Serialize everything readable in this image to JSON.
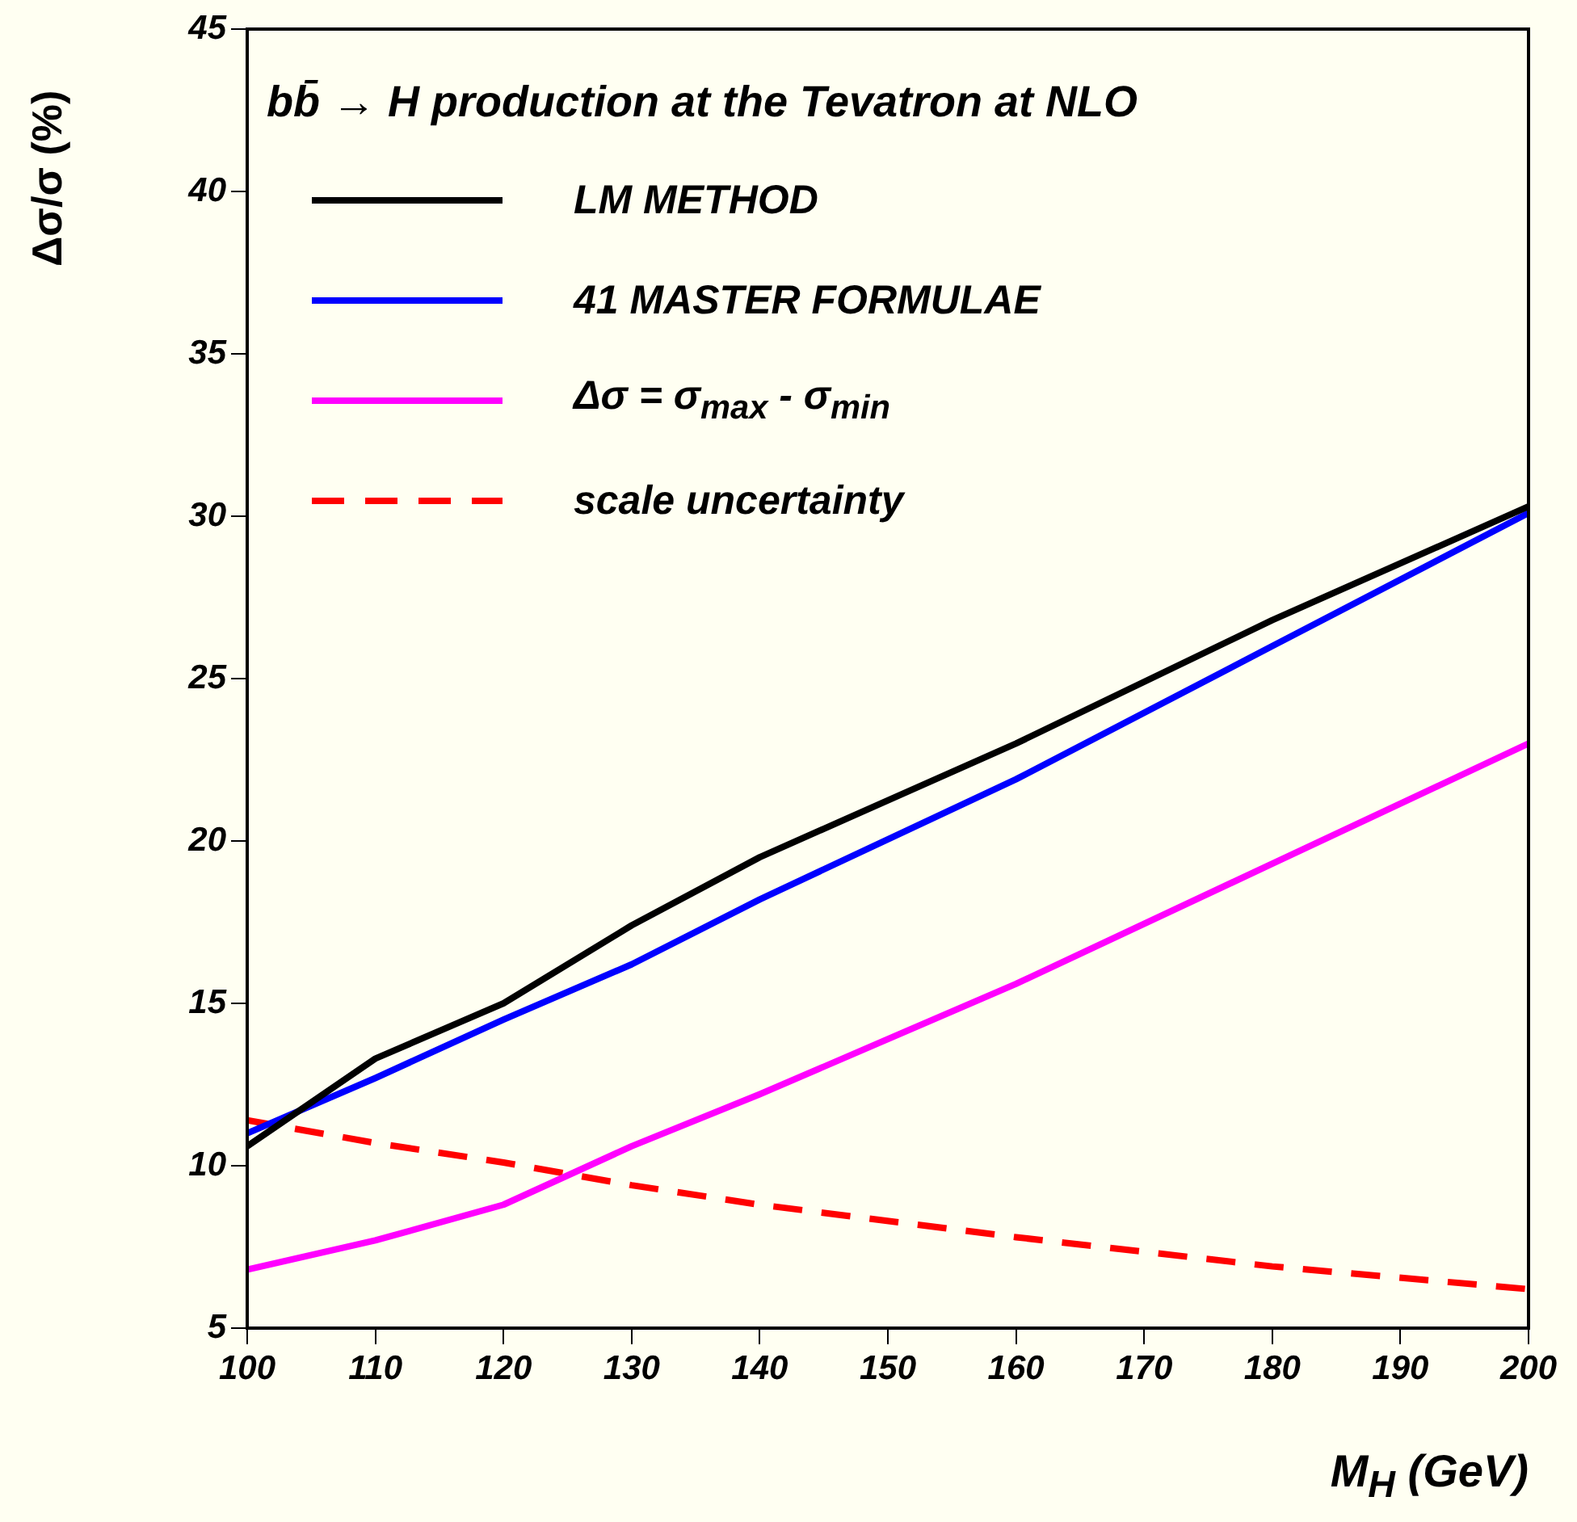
{
  "chart_data": {
    "type": "line",
    "legend_title": "bb̄ → H production at the Tevatron at NLO",
    "xlabel": "M$_{H}$ (GeV)",
    "ylabel": "Δσ/σ (%)",
    "x": [
      100,
      110,
      120,
      130,
      140,
      160,
      180,
      200
    ],
    "series": [
      {
        "name": "LM METHOD",
        "color": "#000000",
        "values": [
          10.6,
          13.3,
          15.0,
          17.4,
          19.5,
          23.0,
          26.8,
          30.3
        ]
      },
      {
        "name": "41 MASTER FORMULAE",
        "color": "#0000ff",
        "values": [
          11.0,
          12.7,
          14.5,
          16.2,
          18.2,
          21.9,
          26.0,
          30.1
        ]
      },
      {
        "name": "Δσ = σ$_{max}$ - σ$_{min}$",
        "color": "#ff00ff",
        "values": [
          6.8,
          7.7,
          8.8,
          10.6,
          12.2,
          15.6,
          19.3,
          23.0
        ]
      },
      {
        "name": "scale uncertainty",
        "color": "#ff0000",
        "line_style": "dashed",
        "values": [
          11.4,
          10.7,
          10.1,
          9.4,
          8.8,
          7.8,
          6.9,
          6.2
        ]
      }
    ],
    "xlim": [
      100,
      200
    ],
    "xticks": [
      100,
      110,
      120,
      130,
      140,
      150,
      160,
      170,
      180,
      190,
      200
    ],
    "ylim": [
      5,
      45
    ],
    "yticks": [
      5,
      10,
      15,
      20,
      25,
      30,
      35,
      40,
      45
    ],
    "grid": false,
    "legend": "top left",
    "marker": "none"
  }
}
